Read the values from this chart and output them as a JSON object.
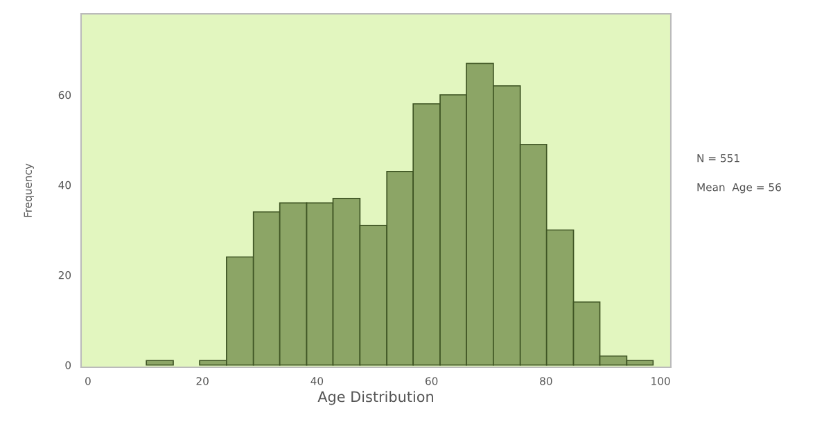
{
  "chart_data": {
    "type": "histogram",
    "xlabel": "Age Distribution",
    "ylabel": "Frequency",
    "bins": [
      10.2,
      14.9,
      19.5,
      24.2,
      28.9,
      33.5,
      38.2,
      42.8,
      47.5,
      52.2,
      56.8,
      61.5,
      66.1,
      70.8,
      75.5,
      80.1,
      84.8,
      89.4,
      94.1,
      98.7
    ],
    "values": [
      1,
      0,
      1,
      24,
      34,
      36,
      36,
      37,
      31,
      43,
      58,
      60,
      67,
      62,
      49,
      30,
      14,
      2,
      1
    ],
    "color": "#8ca566",
    "xlim": [
      -1.2,
      101.8
    ],
    "xticks": [
      0,
      20,
      40,
      60,
      80,
      100
    ],
    "ylim": [
      -0.5,
      78
    ],
    "yticks": [
      0,
      20,
      40,
      60
    ],
    "grid": false,
    "legend": false,
    "annotations": [
      "N = 551",
      "Mean  Age = 56"
    ]
  }
}
